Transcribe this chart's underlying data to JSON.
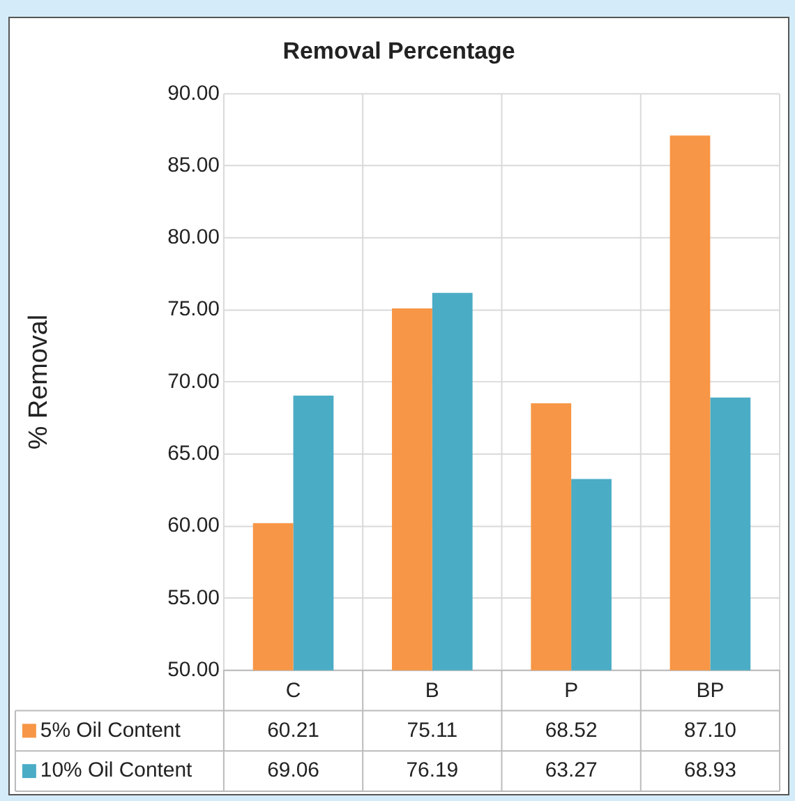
{
  "chart_data": {
    "type": "bar",
    "title": "Removal Percentage",
    "ylabel": "% Removal",
    "categories": [
      "C",
      "B",
      "P",
      "BP"
    ],
    "series": [
      {
        "name": "5% Oil Content",
        "color": "#f79646",
        "values": [
          60.21,
          75.11,
          68.52,
          87.1
        ],
        "value_labels": [
          "60.21",
          "75.11",
          "68.52",
          "87.10"
        ]
      },
      {
        "name": "10% Oil Content",
        "color": "#4bacc6",
        "values": [
          69.06,
          76.19,
          63.27,
          68.93
        ],
        "value_labels": [
          "69.06",
          "76.19",
          "63.27",
          "68.93"
        ]
      }
    ],
    "ylim": [
      50,
      90
    ],
    "yticks": [
      {
        "value": 50,
        "label": "50.00"
      },
      {
        "value": 55,
        "label": "55.00"
      },
      {
        "value": 60,
        "label": "60.00"
      },
      {
        "value": 65,
        "label": "65.00"
      },
      {
        "value": 70,
        "label": "70.00"
      },
      {
        "value": 75,
        "label": "75.00"
      },
      {
        "value": 80,
        "label": "80.00"
      },
      {
        "value": 85,
        "label": "85.00"
      },
      {
        "value": 90,
        "label": "90.00"
      }
    ],
    "grid": true,
    "legend": "bottom"
  }
}
